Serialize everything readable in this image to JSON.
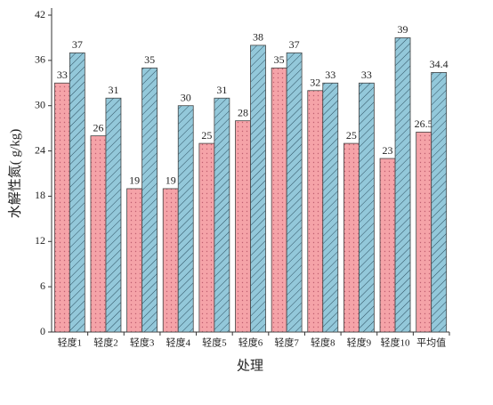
{
  "chart_data": {
    "type": "bar",
    "y_label": "水解性氮(  g/kg)",
    "x_label": "处理",
    "categories": [
      "轻度1",
      "轻度2",
      "轻度3",
      "轻度4",
      "轻度5",
      "轻度6",
      "轻度7",
      "轻度8",
      "轻度9",
      "轻度10",
      "平均值"
    ],
    "series": [
      {
        "color": "#f5a3a8",
        "values": [
          33,
          26,
          19,
          19,
          25,
          28,
          35,
          32,
          25,
          23,
          26.5
        ]
      },
      {
        "color": "#93c8da",
        "values": [
          37,
          31,
          35,
          30,
          31,
          38,
          37,
          33,
          33,
          39,
          34.4
        ]
      }
    ],
    "ylim": [
      0,
      42
    ],
    "yticks": [
      0,
      6,
      12,
      18,
      24,
      30,
      36,
      42
    ]
  }
}
